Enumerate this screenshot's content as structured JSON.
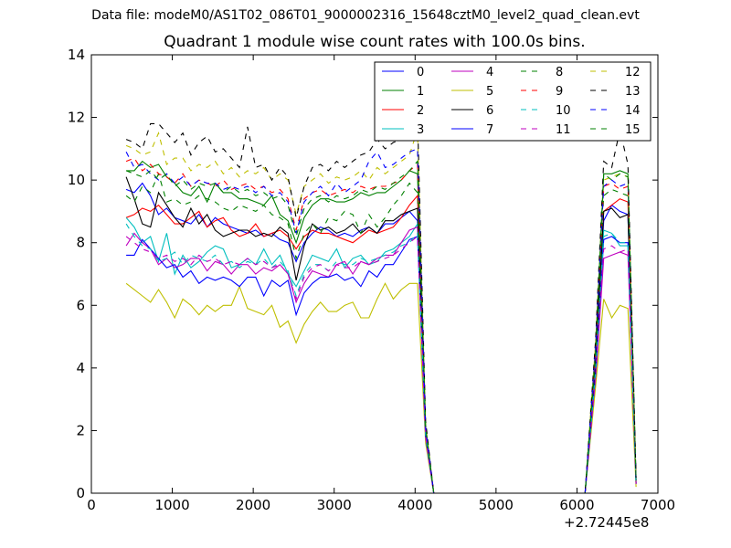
{
  "figure": {
    "suptitle": "Data file: modeM0/AS1T02_086T01_9000002316_15648cztM0_level2_quad_clean.evt",
    "offset_text": "+2.72445e8"
  },
  "chart_data": {
    "type": "line",
    "title": "Quadrant 1 module wise count rates with 100.0s bins.",
    "xlabel": "",
    "ylabel": "",
    "xlim": [
      0,
      7000
    ],
    "ylim": [
      0,
      14
    ],
    "x_offset": 272445000,
    "xticks": [
      "0",
      "1000",
      "2000",
      "3000",
      "4000",
      "5000",
      "6000",
      "7000"
    ],
    "yticks": [
      "0",
      "2",
      "4",
      "6",
      "8",
      "10",
      "12",
      "14"
    ],
    "grid": false,
    "legend": {
      "position": "top-right",
      "columns": 4
    },
    "gap": {
      "from": 4200,
      "to": 6100
    },
    "x_first": [
      430,
      530,
      630,
      730,
      830,
      930,
      1030,
      1130,
      1230,
      1330,
      1430,
      1530,
      1630,
      1730,
      1830,
      1930,
      2030,
      2130,
      2230,
      2330,
      2430,
      2530,
      2630,
      2730,
      2830,
      2930,
      3030,
      3130,
      3230,
      3330,
      3430,
      3530,
      3630,
      3730,
      3830,
      3930,
      4030,
      4130,
      4230
    ],
    "x_second": [
      6130,
      6230,
      6330,
      6430,
      6530,
      6630,
      6730
    ],
    "series": [
      {
        "name": "0",
        "color": "#0000ff",
        "dash": "solid",
        "values": [
          9.7,
          9.6,
          9.9,
          9.5,
          8.9,
          9.1,
          8.8,
          8.7,
          8.6,
          8.9,
          8.5,
          8.8,
          8.6,
          8.5,
          8.4,
          8.3,
          8.4,
          8.2,
          8.3,
          8.1,
          8.0,
          7.4,
          8.0,
          8.3,
          8.5,
          8.4,
          8.2,
          8.3,
          8.2,
          8.4,
          8.5,
          8.3,
          8.6,
          8.6,
          8.8,
          9.0,
          8.7,
          1.8,
          0
        ],
        "values2": [
          0,
          4.0,
          8.7,
          9.2,
          9.0,
          8.9,
          0.4
        ]
      },
      {
        "name": "1",
        "color": "#008000",
        "dash": "solid",
        "values": [
          10.3,
          10.3,
          10.6,
          10.4,
          10.5,
          10.1,
          9.9,
          9.6,
          9.5,
          9.8,
          9.3,
          9.9,
          9.6,
          9.6,
          9.4,
          9.4,
          9.3,
          9.2,
          9.5,
          8.9,
          8.7,
          8.0,
          8.8,
          9.2,
          9.4,
          9.4,
          9.3,
          9.3,
          9.4,
          9.6,
          9.5,
          9.6,
          9.6,
          9.8,
          10.0,
          10.3,
          10.2,
          2.0,
          0
        ],
        "values2": [
          0,
          4.6,
          10.2,
          10.2,
          10.3,
          10.2,
          0.4
        ]
      },
      {
        "name": "2",
        "color": "#ff0000",
        "dash": "solid",
        "values": [
          8.8,
          8.9,
          9.1,
          9.0,
          9.2,
          8.9,
          8.6,
          8.6,
          8.8,
          9.0,
          8.5,
          8.7,
          8.8,
          8.4,
          8.2,
          8.3,
          8.6,
          8.2,
          8.3,
          8.4,
          8.2,
          7.8,
          8.2,
          8.4,
          8.3,
          8.3,
          8.2,
          8.1,
          8.0,
          8.2,
          8.4,
          8.3,
          8.4,
          8.5,
          8.8,
          9.2,
          9.5,
          2.0,
          0
        ],
        "values2": [
          0,
          4.2,
          9.0,
          9.2,
          9.4,
          9.3,
          0.3
        ]
      },
      {
        "name": "3",
        "color": "#00bfbf",
        "dash": "solid",
        "values": [
          8.8,
          8.5,
          8.0,
          8.2,
          7.4,
          8.3,
          7.0,
          7.6,
          7.2,
          7.4,
          7.7,
          7.9,
          7.8,
          7.2,
          7.3,
          7.5,
          7.3,
          7.8,
          7.3,
          7.6,
          7.0,
          6.6,
          7.1,
          7.6,
          7.5,
          7.4,
          7.8,
          7.2,
          7.5,
          7.6,
          7.3,
          7.4,
          7.7,
          7.8,
          8.0,
          8.2,
          8.6,
          1.9,
          0
        ],
        "values2": [
          0,
          3.9,
          8.4,
          8.3,
          7.9,
          7.9,
          0.3
        ]
      },
      {
        "name": "4",
        "color": "#bf00bf",
        "dash": "solid",
        "values": [
          7.9,
          8.3,
          8.0,
          7.8,
          7.3,
          7.5,
          7.2,
          7.3,
          7.5,
          7.5,
          7.1,
          7.4,
          7.3,
          7.0,
          7.3,
          7.3,
          7.0,
          7.2,
          7.1,
          7.3,
          7.0,
          6.1,
          6.7,
          7.1,
          7.0,
          6.9,
          7.3,
          7.4,
          7.0,
          7.4,
          7.3,
          7.5,
          7.6,
          7.6,
          8.0,
          8.4,
          8.5,
          1.9,
          0
        ],
        "values2": [
          0,
          3.6,
          7.5,
          7.6,
          7.7,
          7.6,
          0.3
        ]
      },
      {
        "name": "5",
        "color": "#bfbf00",
        "dash": "solid",
        "values": [
          6.7,
          6.5,
          6.3,
          6.1,
          6.5,
          6.1,
          5.6,
          6.2,
          6.0,
          5.7,
          6.0,
          5.8,
          6.0,
          6.0,
          6.6,
          5.9,
          5.8,
          5.7,
          6.0,
          5.3,
          5.5,
          4.8,
          5.4,
          5.8,
          6.1,
          5.8,
          5.8,
          6.0,
          6.1,
          5.6,
          5.6,
          6.2,
          6.7,
          6.2,
          6.5,
          6.7,
          6.7,
          1.6,
          0
        ],
        "values2": [
          0,
          3.4,
          6.2,
          5.6,
          6.0,
          5.9,
          0.2
        ]
      },
      {
        "name": "6",
        "color": "#000000",
        "dash": "solid",
        "values": [
          10.1,
          9.4,
          8.6,
          8.5,
          9.6,
          9.2,
          8.8,
          8.5,
          9.1,
          8.6,
          8.9,
          8.4,
          8.2,
          8.3,
          8.4,
          8.4,
          8.2,
          8.3,
          8.2,
          8.5,
          8.3,
          6.8,
          7.9,
          8.6,
          8.4,
          8.5,
          8.3,
          8.4,
          8.6,
          8.3,
          8.5,
          8.3,
          8.7,
          8.7,
          8.9,
          9.0,
          9.1,
          2.0,
          0
        ],
        "values2": [
          0,
          4.1,
          9.0,
          9.1,
          8.8,
          8.9,
          0.4
        ]
      },
      {
        "name": "7",
        "color": "#0000ff",
        "dash": "solid",
        "values": [
          7.6,
          7.6,
          8.1,
          7.8,
          7.5,
          7.2,
          7.3,
          6.9,
          7.1,
          6.7,
          6.9,
          6.8,
          6.9,
          6.8,
          6.6,
          6.9,
          6.9,
          6.3,
          6.8,
          6.6,
          6.8,
          5.7,
          6.4,
          6.7,
          6.9,
          6.9,
          7.0,
          6.8,
          6.9,
          6.6,
          7.1,
          6.9,
          7.3,
          7.3,
          7.7,
          8.1,
          8.2,
          1.8,
          0
        ],
        "values2": [
          0,
          3.8,
          8.1,
          8.2,
          8.0,
          8.0,
          0.3
        ]
      },
      {
        "name": "8",
        "color": "#008000",
        "dash": "dashed",
        "values": [
          9.5,
          9.3,
          9.8,
          9.6,
          10.2,
          9.3,
          9.4,
          9.2,
          9.3,
          9.5,
          9.4,
          9.3,
          9.1,
          9.0,
          9.2,
          9.1,
          9.0,
          9.2,
          8.9,
          8.8,
          8.6,
          7.5,
          8.3,
          8.6,
          8.3,
          8.8,
          8.7,
          9.0,
          8.9,
          8.3,
          8.9,
          8.5,
          8.8,
          9.2,
          9.5,
          9.9,
          9.6,
          2.0,
          0
        ],
        "values2": [
          0,
          4.4,
          9.5,
          9.7,
          9.6,
          9.5,
          0.4
        ]
      },
      {
        "name": "9",
        "color": "#ff0000",
        "dash": "dashed",
        "values": [
          10.6,
          10.7,
          10.3,
          10.5,
          10.2,
          10.1,
          9.9,
          10.2,
          9.8,
          10.0,
          9.9,
          9.8,
          10.0,
          9.7,
          9.8,
          9.9,
          9.7,
          9.8,
          9.6,
          9.7,
          9.4,
          8.4,
          9.4,
          9.6,
          9.7,
          9.5,
          9.6,
          9.7,
          9.6,
          9.8,
          9.7,
          9.8,
          9.8,
          9.9,
          10.0,
          10.3,
          10.5,
          2.1,
          0
        ],
        "values2": [
          0,
          4.5,
          9.8,
          9.9,
          9.7,
          9.8,
          0.4
        ]
      },
      {
        "name": "10",
        "color": "#00bfbf",
        "dash": "dashed",
        "values": [
          8.6,
          8.2,
          7.9,
          7.8,
          7.4,
          7.5,
          7.7,
          7.3,
          7.6,
          7.5,
          7.4,
          7.6,
          7.3,
          7.4,
          7.2,
          7.4,
          7.3,
          7.5,
          7.2,
          7.4,
          7.1,
          6.3,
          7.0,
          7.3,
          7.3,
          7.1,
          7.4,
          7.3,
          7.3,
          7.5,
          7.4,
          7.5,
          7.6,
          7.7,
          7.9,
          8.0,
          8.3,
          1.9,
          0
        ],
        "values2": [
          0,
          3.9,
          8.2,
          8.3,
          8.0,
          8.0,
          0.3
        ]
      },
      {
        "name": "11",
        "color": "#bf00bf",
        "dash": "dashed",
        "values": [
          8.2,
          8.0,
          7.8,
          7.7,
          7.5,
          7.6,
          7.4,
          7.5,
          7.3,
          7.6,
          7.4,
          7.5,
          7.3,
          7.4,
          7.3,
          7.5,
          7.3,
          7.4,
          7.2,
          7.3,
          7.0,
          6.2,
          6.9,
          7.2,
          7.3,
          7.1,
          7.3,
          7.2,
          7.2,
          7.4,
          7.3,
          7.4,
          7.5,
          7.6,
          7.8,
          8.0,
          8.2,
          1.8,
          0
        ],
        "values2": [
          0,
          3.7,
          7.8,
          7.9,
          7.7,
          7.8,
          0.3
        ]
      },
      {
        "name": "12",
        "color": "#bfbf00",
        "dash": "dashed",
        "values": [
          11.1,
          11.0,
          10.8,
          10.9,
          11.5,
          10.5,
          10.7,
          10.7,
          10.3,
          10.5,
          10.4,
          10.6,
          10.2,
          10.4,
          10.1,
          10.3,
          10.2,
          10.4,
          10.0,
          10.2,
          10.0,
          8.9,
          9.8,
          10.0,
          10.2,
          9.9,
          10.1,
          10.0,
          10.1,
          10.3,
          10.0,
          10.4,
          10.2,
          10.4,
          10.6,
          10.8,
          11.6,
          2.2,
          0
        ],
        "values2": [
          0,
          4.8,
          10.0,
          10.1,
          10.2,
          10.1,
          0.4
        ]
      },
      {
        "name": "13",
        "color": "#000000",
        "dash": "dashed",
        "values": [
          11.3,
          11.2,
          11.0,
          11.8,
          11.8,
          11.5,
          11.2,
          11.5,
          10.8,
          11.2,
          11.4,
          10.9,
          11.0,
          10.7,
          10.4,
          11.7,
          10.4,
          10.5,
          10.0,
          10.4,
          10.1,
          8.8,
          9.8,
          10.4,
          10.5,
          10.3,
          10.6,
          10.4,
          10.6,
          10.8,
          10.9,
          11.3,
          11.0,
          11.2,
          11.3,
          11.5,
          12.0,
          2.3,
          0
        ],
        "values2": [
          0,
          4.9,
          10.6,
          10.4,
          11.6,
          10.5,
          0.5
        ]
      },
      {
        "name": "14",
        "color": "#0000ff",
        "dash": "dashed",
        "values": [
          10.9,
          10.4,
          10.5,
          10.2,
          10.0,
          10.2,
          9.9,
          10.1,
          9.8,
          10.0,
          9.9,
          9.9,
          9.7,
          9.8,
          9.7,
          9.8,
          9.6,
          9.8,
          9.5,
          9.6,
          9.3,
          8.3,
          9.3,
          9.6,
          9.8,
          9.5,
          9.9,
          9.6,
          9.8,
          10.0,
          10.6,
          10.9,
          10.4,
          10.5,
          10.7,
          10.9,
          11.0,
          2.1,
          0
        ],
        "values2": [
          0,
          4.6,
          9.8,
          10.0,
          9.8,
          9.9,
          0.4
        ]
      },
      {
        "name": "15",
        "color": "#008000",
        "dash": "dashed",
        "values": [
          10.3,
          10.2,
          10.1,
          10.3,
          10.0,
          10.2,
          9.8,
          10.0,
          9.7,
          9.9,
          9.8,
          9.9,
          9.6,
          9.8,
          9.6,
          9.7,
          9.5,
          9.6,
          9.4,
          9.5,
          9.2,
          8.2,
          9.1,
          9.4,
          9.5,
          9.3,
          9.5,
          9.4,
          9.5,
          9.7,
          9.6,
          9.8,
          9.7,
          9.9,
          10.1,
          10.3,
          10.6,
          2.1,
          0
        ],
        "values2": [
          0,
          4.5,
          10.2,
          10.0,
          10.2,
          10.1,
          0.4
        ]
      }
    ]
  }
}
